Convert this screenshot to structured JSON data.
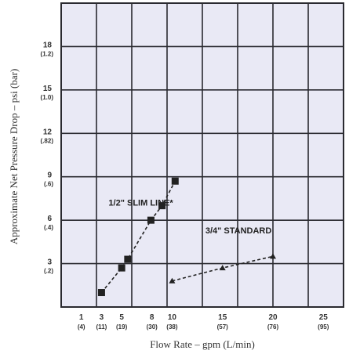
{
  "chart_data": {
    "type": "line",
    "xlabel": "Flow Rate – gpm (L/min)",
    "ylabel": "Approximate Net Pressure Drop – psi (bar)",
    "xlim": [
      -1,
      27
    ],
    "ylim": [
      0,
      21
    ],
    "grid": true,
    "x_ticks": [
      {
        "value": 1,
        "label": "1",
        "sub": "(4)"
      },
      {
        "value": 3,
        "label": "3",
        "sub": "(11)"
      },
      {
        "value": 5,
        "label": "5",
        "sub": "(19)"
      },
      {
        "value": 8,
        "label": "8",
        "sub": "(30)"
      },
      {
        "value": 10,
        "label": "10",
        "sub": "(38)"
      },
      {
        "value": 15,
        "label": "15",
        "sub": "(57)"
      },
      {
        "value": 20,
        "label": "20",
        "sub": "(76)"
      },
      {
        "value": 25,
        "label": "25",
        "sub": "(95)"
      }
    ],
    "y_ticks": [
      {
        "value": 3,
        "label": "3",
        "sub": "(.2)"
      },
      {
        "value": 6,
        "label": "6",
        "sub": "(.4)"
      },
      {
        "value": 9,
        "label": "9",
        "sub": "(.6)"
      },
      {
        "value": 12,
        "label": "12",
        "sub": "(.82)"
      },
      {
        "value": 15,
        "label": "15",
        "sub": "(1.0)"
      },
      {
        "value": 18,
        "label": "18",
        "sub": "(1.2)"
      }
    ],
    "series": [
      {
        "name": "1/2\" SLIM LINE*",
        "marker": "square",
        "x": [
          3,
          5,
          5.6,
          7.9,
          9.0,
          10.3
        ],
        "y": [
          1.0,
          2.7,
          3.3,
          6.0,
          7.0,
          8.7
        ]
      },
      {
        "name": "3/4\" STANDARD",
        "marker": "triangle",
        "x": [
          10,
          15,
          20
        ],
        "y": [
          1.8,
          2.7,
          3.5
        ]
      }
    ]
  },
  "colors": {
    "grid": "#2a2a30",
    "plot_bg": "#e9e9f5",
    "series": "#222222"
  }
}
